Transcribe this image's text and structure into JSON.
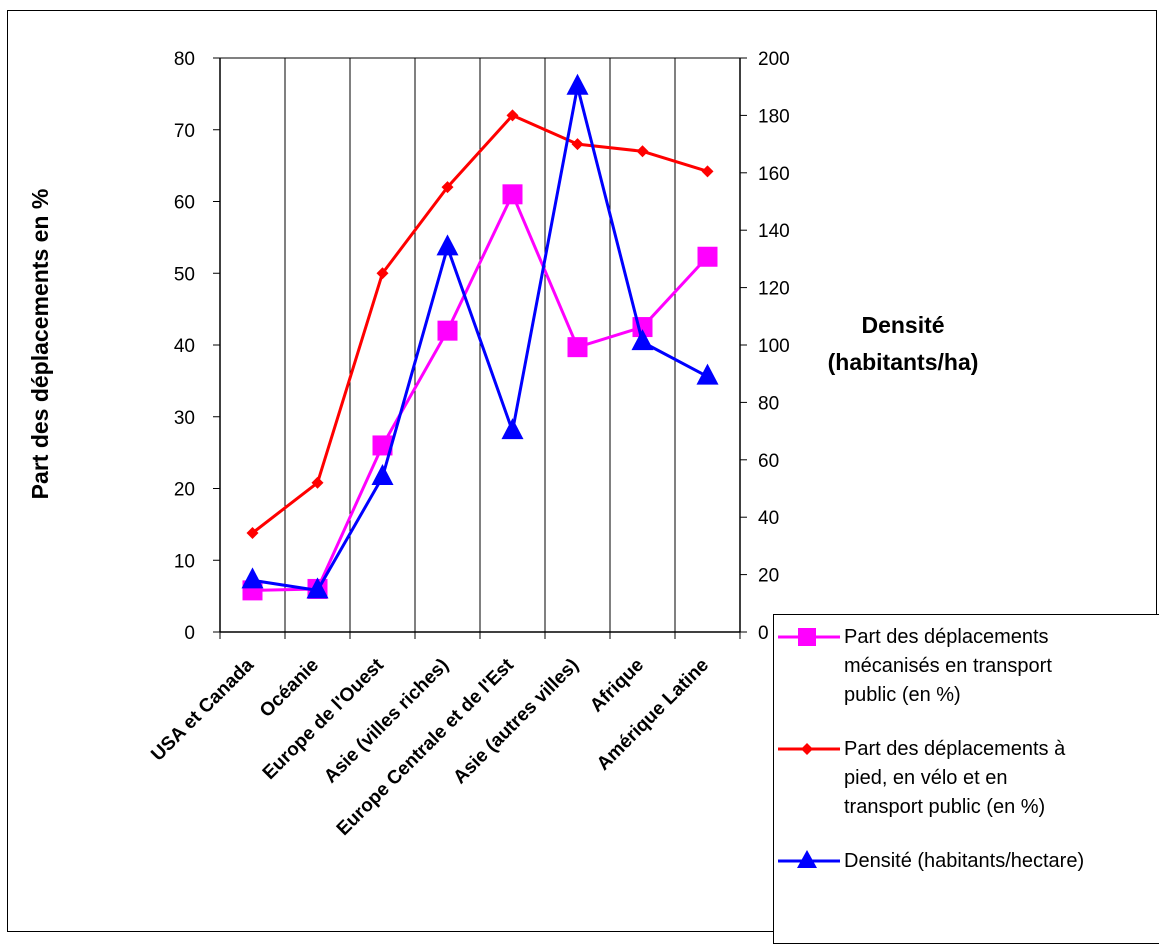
{
  "chart_data": {
    "type": "line",
    "categories": [
      "USA et Canada",
      "Océanie",
      "Europe de l'Ouest",
      "Asie (villes riches)",
      "Europe Centrale et de l'Est",
      "Asie (autres villes)",
      "Afrique",
      "Amérique Latine"
    ],
    "ylabel": "Part des déplacements en %",
    "y2label_line1": "Densité",
    "y2label_line2": "(habitants/ha)",
    "ylim": [
      0,
      80
    ],
    "y2lim": [
      0,
      200
    ],
    "yticks": [
      "0",
      "10",
      "20",
      "30",
      "40",
      "50",
      "60",
      "70",
      "80"
    ],
    "y2ticks": [
      "0",
      "20",
      "40",
      "60",
      "80",
      "100",
      "120",
      "140",
      "160",
      "180",
      "200"
    ],
    "grid": "vertical",
    "legend_position": "bottom-right",
    "series": [
      {
        "name": "Part des déplacements mécanisés en transport public (en %)",
        "axis": "left",
        "color": "#ff00ff",
        "marker": "square",
        "values": [
          5.8,
          6,
          26,
          42,
          61,
          39.7,
          42.5,
          52.3
        ]
      },
      {
        "name": "Part des déplacements à pied, en vélo et en transport public (en %)",
        "axis": "left",
        "color": "#ff0000",
        "marker": "diamond",
        "values": [
          13.8,
          20.8,
          50,
          62,
          72,
          68,
          67,
          64.2
        ]
      },
      {
        "name": "Densité (habitants/hectare)",
        "axis": "right",
        "color": "#0000ff",
        "marker": "triangle",
        "values": [
          18,
          14.5,
          54,
          134,
          70,
          190,
          101,
          89
        ]
      }
    ]
  },
  "legend": {
    "items": [
      {
        "lines": [
          "Part des déplacements",
          "mécanisés en transport",
          "public (en %)"
        ]
      },
      {
        "lines": [
          "Part des déplacements à",
          "pied, en vélo et en",
          "transport public (en %)"
        ]
      },
      {
        "lines": [
          "Densité (habitants/hectare)"
        ]
      }
    ]
  }
}
